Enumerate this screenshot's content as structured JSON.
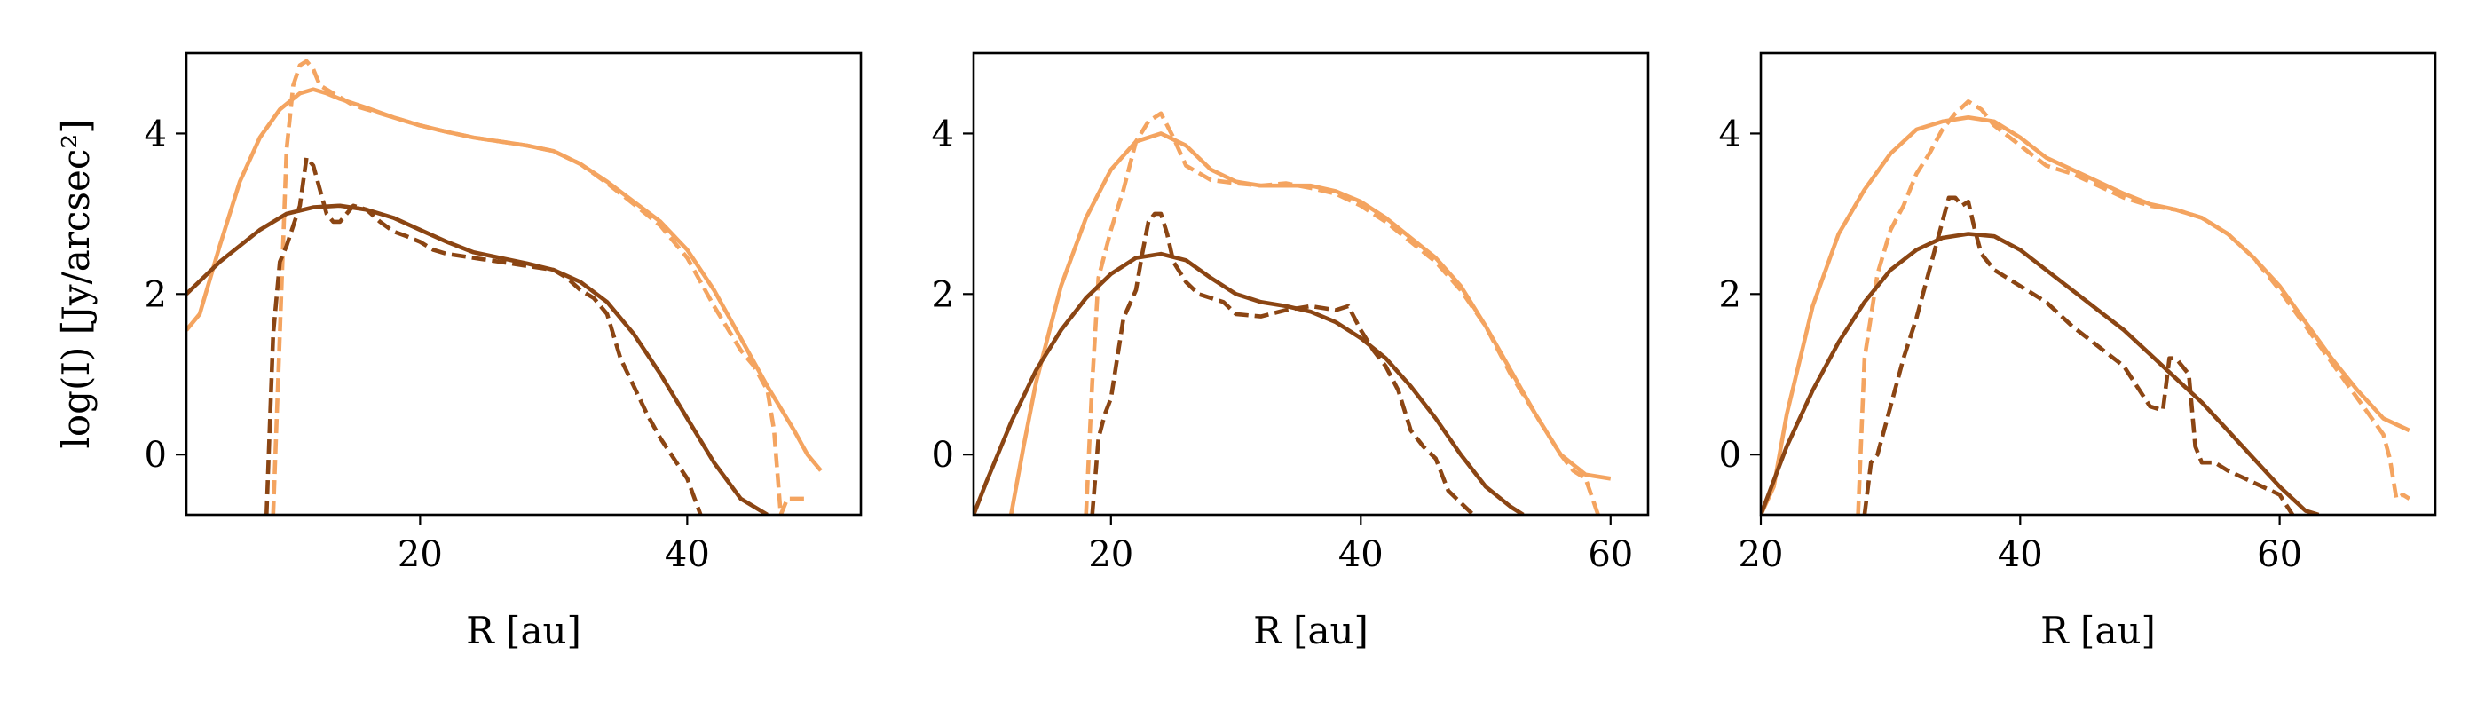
{
  "chart_data": [
    {
      "type": "line",
      "xlabel": "R [au]",
      "ylabel": "log(I) [Jy/arcsec²]",
      "xlim": [
        2.5,
        53
      ],
      "ylim": [
        -0.75,
        5.0
      ],
      "xticks": [
        20,
        40
      ],
      "yticks": [
        0,
        2,
        4
      ],
      "series": [
        {
          "color": "#F4A460",
          "style": "solid",
          "x": [
            2.5,
            3.5,
            5,
            6.5,
            8,
            9.5,
            11,
            12,
            13,
            14,
            16,
            18,
            20,
            22,
            24,
            26,
            28,
            30,
            32,
            34,
            36,
            38,
            40,
            42,
            44,
            46,
            48,
            49,
            50
          ],
          "y": [
            1.55,
            1.75,
            2.6,
            3.4,
            3.95,
            4.3,
            4.5,
            4.55,
            4.5,
            4.43,
            4.32,
            4.2,
            4.1,
            4.02,
            3.95,
            3.9,
            3.85,
            3.78,
            3.62,
            3.4,
            3.15,
            2.9,
            2.55,
            2.05,
            1.45,
            0.85,
            0.3,
            0.0,
            -0.2
          ]
        },
        {
          "color": "#F4A460",
          "style": "dashed",
          "x": [
            9,
            9.5,
            10,
            10.5,
            11,
            11.5,
            12,
            12.5,
            13,
            14,
            15,
            16,
            18,
            20,
            22,
            24,
            26,
            28,
            30,
            32,
            34,
            36,
            38,
            40,
            42,
            44,
            45,
            46,
            46.5,
            47,
            47.5,
            48,
            49
          ],
          "y": [
            -0.75,
            1.5,
            3.8,
            4.6,
            4.85,
            4.9,
            4.8,
            4.6,
            4.55,
            4.45,
            4.35,
            4.3,
            4.2,
            4.1,
            4.02,
            3.95,
            3.9,
            3.85,
            3.78,
            3.62,
            3.38,
            3.12,
            2.85,
            2.45,
            1.85,
            1.3,
            1.1,
            0.8,
            0.3,
            -0.75,
            -0.55,
            -0.55,
            -0.55
          ]
        },
        {
          "color": "#8B4513",
          "style": "solid",
          "x": [
            2.5,
            5,
            8,
            10,
            12,
            14,
            16,
            18,
            20,
            22,
            24,
            26,
            28,
            30,
            32,
            34,
            36,
            38,
            40,
            42,
            44,
            46
          ],
          "y": [
            2.0,
            2.4,
            2.8,
            3.0,
            3.08,
            3.1,
            3.05,
            2.95,
            2.8,
            2.65,
            2.52,
            2.45,
            2.38,
            2.3,
            2.15,
            1.9,
            1.5,
            1.0,
            0.45,
            -0.1,
            -0.55,
            -0.75
          ]
        },
        {
          "color": "#8B4513",
          "style": "dashed",
          "x": [
            8.5,
            9,
            9.5,
            10,
            11,
            11.5,
            12,
            12.5,
            13,
            13.5,
            14,
            15,
            16,
            17,
            18,
            19,
            20,
            21,
            22,
            24,
            26,
            28,
            30,
            31,
            32,
            33,
            34,
            35,
            36,
            37,
            38,
            39,
            40,
            41
          ],
          "y": [
            -0.75,
            1.5,
            2.4,
            2.6,
            3.1,
            3.7,
            3.6,
            3.3,
            3.0,
            2.9,
            2.9,
            3.1,
            3.05,
            2.9,
            2.78,
            2.72,
            2.65,
            2.55,
            2.5,
            2.45,
            2.4,
            2.35,
            2.3,
            2.2,
            2.05,
            1.95,
            1.75,
            1.2,
            0.85,
            0.5,
            0.2,
            -0.05,
            -0.3,
            -0.75
          ]
        }
      ]
    },
    {
      "type": "line",
      "xlabel": "R [au]",
      "ylabel": "",
      "xlim": [
        9,
        63
      ],
      "ylim": [
        -0.75,
        5.0
      ],
      "xticks": [
        20,
        40,
        60
      ],
      "yticks": [
        0,
        2,
        4
      ],
      "series": [
        {
          "color": "#F4A460",
          "style": "solid",
          "x": [
            12,
            13,
            14,
            16,
            18,
            20,
            22,
            24,
            26,
            28,
            30,
            32,
            34,
            36,
            38,
            40,
            42,
            44,
            46,
            48,
            50,
            52,
            54,
            56,
            58,
            60
          ],
          "y": [
            -0.75,
            0.1,
            0.9,
            2.1,
            2.95,
            3.55,
            3.9,
            4.0,
            3.85,
            3.55,
            3.4,
            3.35,
            3.35,
            3.35,
            3.28,
            3.15,
            2.95,
            2.7,
            2.45,
            2.1,
            1.6,
            1.05,
            0.5,
            0.0,
            -0.25,
            -0.3
          ]
        },
        {
          "color": "#F4A460",
          "style": "dashed",
          "x": [
            18,
            18.5,
            19,
            20,
            21,
            22,
            23,
            24,
            25,
            26,
            28,
            30,
            32,
            34,
            36,
            38,
            40,
            42,
            44,
            46,
            48,
            50,
            52,
            54,
            56,
            57,
            58,
            59
          ],
          "y": [
            -0.75,
            0.9,
            2.2,
            2.8,
            3.3,
            3.9,
            4.15,
            4.25,
            3.95,
            3.6,
            3.42,
            3.38,
            3.35,
            3.38,
            3.32,
            3.25,
            3.1,
            2.9,
            2.65,
            2.4,
            2.05,
            1.6,
            1.0,
            0.5,
            0.0,
            -0.2,
            -0.3,
            -0.75
          ]
        },
        {
          "color": "#8B4513",
          "style": "solid",
          "x": [
            9,
            10,
            12,
            14,
            16,
            18,
            20,
            22,
            24,
            26,
            28,
            30,
            32,
            34,
            36,
            38,
            40,
            42,
            44,
            46,
            48,
            50,
            52,
            53
          ],
          "y": [
            -0.75,
            -0.35,
            0.4,
            1.05,
            1.55,
            1.95,
            2.25,
            2.45,
            2.5,
            2.42,
            2.2,
            2.0,
            1.9,
            1.85,
            1.78,
            1.65,
            1.45,
            1.2,
            0.85,
            0.45,
            0.0,
            -0.4,
            -0.65,
            -0.75
          ]
        },
        {
          "color": "#8B4513",
          "style": "dashed",
          "x": [
            18.5,
            19,
            19.5,
            20,
            21,
            22,
            22.5,
            23,
            23.5,
            24,
            24.5,
            25,
            26,
            27,
            28,
            29,
            30,
            32,
            34,
            36,
            38,
            39,
            40,
            41,
            42,
            43,
            44,
            45,
            46,
            47,
            48,
            49
          ],
          "y": [
            -0.75,
            0.2,
            0.5,
            0.7,
            1.7,
            2.05,
            2.5,
            2.9,
            3.0,
            3.0,
            2.75,
            2.4,
            2.15,
            2.0,
            1.95,
            1.9,
            1.75,
            1.72,
            1.8,
            1.85,
            1.8,
            1.85,
            1.55,
            1.3,
            1.1,
            0.8,
            0.3,
            0.1,
            -0.05,
            -0.45,
            -0.6,
            -0.75
          ]
        }
      ]
    },
    {
      "type": "line",
      "xlabel": "R [au]",
      "ylabel": "",
      "xlim": [
        20,
        72
      ],
      "ylim": [
        -0.75,
        5.0
      ],
      "xticks": [
        20,
        40,
        60
      ],
      "yticks": [
        0,
        2,
        4
      ],
      "series": [
        {
          "color": "#F4A460",
          "style": "solid",
          "x": [
            20,
            21,
            22,
            24,
            26,
            28,
            30,
            32,
            34,
            36,
            38,
            40,
            42,
            44,
            46,
            48,
            50,
            52,
            54,
            56,
            58,
            60,
            62,
            64,
            66,
            68,
            70
          ],
          "y": [
            -0.75,
            -0.4,
            0.5,
            1.85,
            2.75,
            3.3,
            3.75,
            4.05,
            4.15,
            4.2,
            4.15,
            3.95,
            3.7,
            3.55,
            3.4,
            3.25,
            3.12,
            3.05,
            2.95,
            2.75,
            2.45,
            2.1,
            1.65,
            1.2,
            0.8,
            0.45,
            0.3
          ]
        },
        {
          "color": "#F4A460",
          "style": "dashed",
          "x": [
            27.5,
            28,
            29,
            30,
            31,
            32,
            33,
            34,
            35,
            36,
            37,
            38,
            40,
            42,
            44,
            46,
            48,
            50,
            52,
            54,
            56,
            58,
            60,
            62,
            64,
            66,
            68,
            68.5,
            69,
            69.5,
            70
          ],
          "y": [
            -0.75,
            1.2,
            2.25,
            2.8,
            3.1,
            3.5,
            3.75,
            4.05,
            4.25,
            4.4,
            4.3,
            4.1,
            3.85,
            3.6,
            3.5,
            3.35,
            3.2,
            3.1,
            3.05,
            2.95,
            2.75,
            2.45,
            2.05,
            1.6,
            1.15,
            0.7,
            0.25,
            -0.05,
            -0.55,
            -0.5,
            -0.55
          ]
        },
        {
          "color": "#8B4513",
          "style": "solid",
          "x": [
            20,
            22,
            24,
            26,
            28,
            30,
            32,
            34,
            36,
            38,
            40,
            42,
            44,
            46,
            48,
            50,
            52,
            54,
            56,
            58,
            60,
            62,
            63
          ],
          "y": [
            -0.75,
            0.1,
            0.8,
            1.4,
            1.9,
            2.3,
            2.55,
            2.7,
            2.75,
            2.72,
            2.55,
            2.3,
            2.05,
            1.8,
            1.55,
            1.25,
            0.95,
            0.65,
            0.3,
            -0.05,
            -0.4,
            -0.7,
            -0.75
          ]
        },
        {
          "color": "#8B4513",
          "style": "dashed",
          "x": [
            28,
            28.5,
            29,
            30,
            31,
            32,
            33,
            34,
            34.5,
            35,
            35.5,
            36,
            36.5,
            37,
            38,
            40,
            42,
            44,
            46,
            48,
            50,
            51,
            51.5,
            52,
            53,
            53.5,
            54,
            55,
            56,
            58,
            60,
            61
          ],
          "y": [
            -0.75,
            -0.1,
            0.0,
            0.6,
            1.2,
            1.7,
            2.3,
            2.9,
            3.2,
            3.2,
            3.1,
            3.15,
            2.8,
            2.5,
            2.3,
            2.1,
            1.9,
            1.6,
            1.35,
            1.1,
            0.6,
            0.55,
            1.2,
            1.2,
            1.0,
            0.1,
            -0.1,
            -0.1,
            -0.2,
            -0.35,
            -0.5,
            -0.75
          ]
        }
      ]
    }
  ]
}
